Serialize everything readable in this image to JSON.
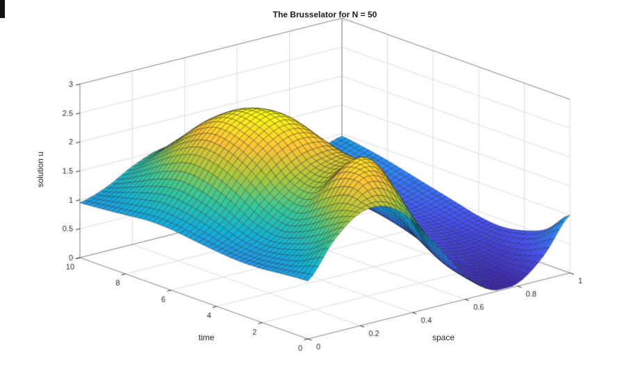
{
  "figure": {
    "background": "#ffffff"
  },
  "chart_data": {
    "type": "surface",
    "title": "The Brusselator for N = 50",
    "xlabel": "space",
    "ylabel": "time",
    "zlabel": "solution u",
    "xlim": [
      0,
      1
    ],
    "tlim": [
      0,
      10
    ],
    "zlim": [
      0,
      3
    ],
    "grid": true,
    "mesh_cells": 50,
    "x": [
      0,
      0.1,
      0.2,
      0.3,
      0.4,
      0.5,
      0.6,
      0.7,
      0.8,
      0.9,
      1.0
    ],
    "t": [
      0,
      1,
      2,
      3,
      4,
      5,
      6,
      7,
      8,
      9,
      10
    ],
    "z": [
      [
        1.0,
        1.59,
        1.95,
        1.95,
        1.59,
        1.0,
        0.41,
        0.05,
        0.05,
        0.41,
        1.0
      ],
      [
        0.97,
        1.3,
        1.85,
        2.3,
        2.1,
        1.25,
        0.5,
        0.18,
        0.1,
        0.28,
        0.62
      ],
      [
        0.93,
        1.15,
        1.6,
        2.25,
        2.4,
        1.75,
        0.75,
        0.3,
        0.18,
        0.24,
        0.45
      ],
      [
        0.92,
        1.08,
        1.42,
        1.85,
        2.1,
        2.0,
        1.05,
        0.45,
        0.28,
        0.28,
        0.38
      ],
      [
        0.95,
        1.15,
        1.55,
        1.9,
        2.1,
        2.05,
        1.25,
        0.58,
        0.38,
        0.34,
        0.42
      ],
      [
        1.0,
        1.32,
        1.85,
        2.25,
        2.4,
        2.15,
        1.35,
        0.68,
        0.45,
        0.42,
        0.52
      ],
      [
        1.05,
        1.45,
        2.05,
        2.45,
        2.6,
        2.25,
        1.4,
        0.74,
        0.5,
        0.5,
        0.62
      ],
      [
        1.06,
        1.5,
        2.1,
        2.5,
        2.55,
        2.15,
        1.32,
        0.74,
        0.55,
        0.58,
        0.72
      ],
      [
        1.02,
        1.4,
        1.92,
        2.28,
        2.28,
        1.88,
        1.12,
        0.7,
        0.6,
        0.66,
        0.82
      ],
      [
        0.98,
        1.24,
        1.62,
        1.88,
        1.88,
        1.52,
        0.98,
        0.7,
        0.66,
        0.74,
        0.9
      ],
      [
        0.95,
        1.1,
        1.35,
        1.52,
        1.52,
        1.28,
        0.92,
        0.72,
        0.72,
        0.82,
        0.96
      ]
    ],
    "ticks": {
      "space_vals": [
        0,
        0.2,
        0.4,
        0.6,
        0.8,
        1
      ],
      "space_labels": [
        "0",
        "0.2",
        "0.4",
        "0.6",
        "0.8",
        "1"
      ],
      "time_vals": [
        0,
        2,
        4,
        6,
        8,
        10
      ],
      "time_labels": [
        "0",
        "2",
        "4",
        "6",
        "8",
        "10"
      ],
      "z_vals": [
        0,
        0.5,
        1,
        1.5,
        2,
        2.5,
        3
      ],
      "z_labels": [
        "0",
        "0.5",
        "1",
        "1.5",
        "2",
        "2.5",
        "3"
      ]
    },
    "colormap": "parula",
    "colormap_stops": [
      [
        0.0,
        [
          62,
          38,
          168
        ]
      ],
      [
        0.143,
        [
          72,
          82,
          244
        ]
      ],
      [
        0.286,
        [
          46,
          135,
          247
        ]
      ],
      [
        0.429,
        [
          18,
          177,
          214
        ]
      ],
      [
        0.571,
        [
          55,
          200,
          151
        ]
      ],
      [
        0.714,
        [
          171,
          199,
          57
        ]
      ],
      [
        0.857,
        [
          254,
          195,
          56
        ]
      ],
      [
        1.0,
        [
          249,
          251,
          21
        ]
      ]
    ],
    "colors": {
      "grid_line": "#dadada",
      "box_line": "#8a8a8a",
      "tick_text": "#262626",
      "mesh_edge": "rgba(20,20,25,0.8)"
    },
    "legend": null
  }
}
